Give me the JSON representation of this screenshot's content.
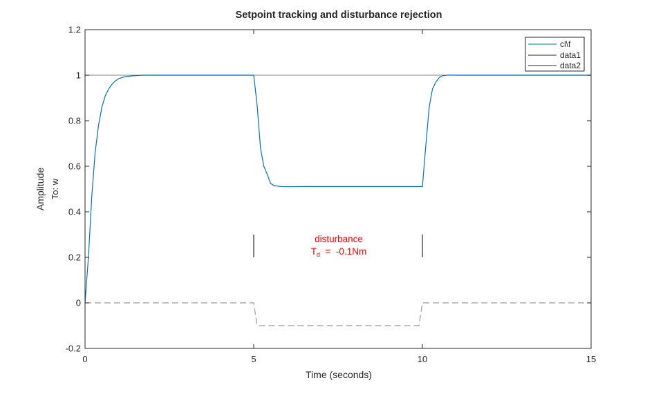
{
  "chart_data": {
    "type": "line",
    "title": "Setpoint tracking and disturbance rejection",
    "xlabel": "Time (seconds)",
    "ylabel": "Amplitude",
    "ylabel2": "To: w",
    "xlim": [
      0,
      15
    ],
    "ylim": [
      -0.2,
      1.2
    ],
    "xticks": [
      "0",
      "5",
      "10",
      "15"
    ],
    "yticks": [
      "-0.2",
      "0",
      "0.2",
      "0.4",
      "0.6",
      "0.8",
      "1",
      "1.2"
    ],
    "grid": false,
    "legend_position": "top-right",
    "series": [
      {
        "name": "cl\\f",
        "color": "#0072BD",
        "x": [
          0,
          0.1,
          0.2,
          0.3,
          0.4,
          0.5,
          0.6,
          0.7,
          0.8,
          0.9,
          1.0,
          1.1,
          1.2,
          1.4,
          1.6,
          1.8,
          2.0,
          2.5,
          3,
          4,
          5,
          5.1,
          5.2,
          5.3,
          5.4,
          5.5,
          5.6,
          5.8,
          6.0,
          6.5,
          7,
          8,
          9,
          10,
          10.1,
          10.2,
          10.3,
          10.4,
          10.5,
          10.6,
          10.8,
          11.0,
          12,
          13,
          14,
          15
        ],
        "y": [
          0,
          0.2,
          0.47,
          0.66,
          0.78,
          0.86,
          0.91,
          0.94,
          0.96,
          0.975,
          0.985,
          0.99,
          0.994,
          0.997,
          0.999,
          1.0,
          1.0,
          1.0,
          1.0,
          1.0,
          1.0,
          0.87,
          0.68,
          0.6,
          0.565,
          0.525,
          0.515,
          0.511,
          0.51,
          0.511,
          0.511,
          0.511,
          0.511,
          0.511,
          0.69,
          0.86,
          0.94,
          0.97,
          0.99,
          0.998,
          1.001,
          1.0,
          1.0,
          1.0,
          1.0,
          1.0
        ]
      },
      {
        "name": "data1",
        "color": "#999999",
        "x": [
          0,
          15
        ],
        "y": [
          1,
          1
        ]
      },
      {
        "name": "data2",
        "color": "#999999",
        "dashed": true,
        "x": [
          0,
          5,
          5.1,
          9.9,
          10,
          15
        ],
        "y": [
          0,
          0,
          -0.1,
          -0.1,
          0,
          0
        ]
      }
    ],
    "annotations": {
      "markers_x": [
        5,
        10
      ],
      "marker_y": [
        0.2,
        0.3
      ],
      "label_line1": "disturbance",
      "label_line2_main": "T",
      "label_line2_sub": "d",
      "label_line2_rest": "  =  -0.1Nm",
      "label_color": "#ff0000"
    }
  }
}
